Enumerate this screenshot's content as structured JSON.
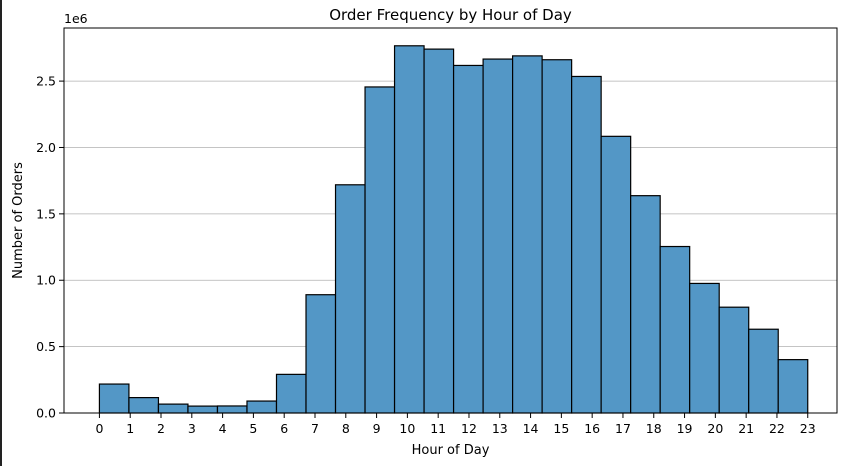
{
  "chart_data": {
    "type": "bar",
    "title": "Order Frequency by Hour of Day",
    "xlabel": "Hour of Day",
    "ylabel": "Number of Orders",
    "y_offset_label": "1e6",
    "categories": [
      "0",
      "1",
      "2",
      "3",
      "4",
      "5",
      "6",
      "7",
      "8",
      "9",
      "10",
      "11",
      "12",
      "13",
      "14",
      "15",
      "16",
      "17",
      "18",
      "19",
      "20",
      "21",
      "22",
      "23"
    ],
    "values": [
      218000,
      116000,
      67000,
      52000,
      53000,
      90000,
      291000,
      891000,
      1719000,
      2456000,
      2766000,
      2741000,
      2618000,
      2666000,
      2690000,
      2661000,
      2535000,
      2084000,
      1637000,
      1254000,
      976000,
      797000,
      631000,
      402000
    ],
    "ylim": [
      0,
      2900000
    ],
    "yticks": [
      0,
      500000,
      1000000,
      1500000,
      2000000,
      2500000
    ],
    "ytick_labels": [
      "0.0",
      "0.5",
      "1.0",
      "1.5",
      "2.0",
      "2.5"
    ],
    "xticks": [
      0,
      1,
      2,
      3,
      4,
      5,
      6,
      7,
      8,
      9,
      10,
      11,
      12,
      13,
      14,
      15,
      16,
      17,
      18,
      19,
      20,
      21,
      22,
      23
    ],
    "xlim": [
      -1.15,
      23.95
    ],
    "bar_color": "#5397c6",
    "edge_color": "#000000",
    "grid": "y-axis",
    "legend": "none"
  }
}
